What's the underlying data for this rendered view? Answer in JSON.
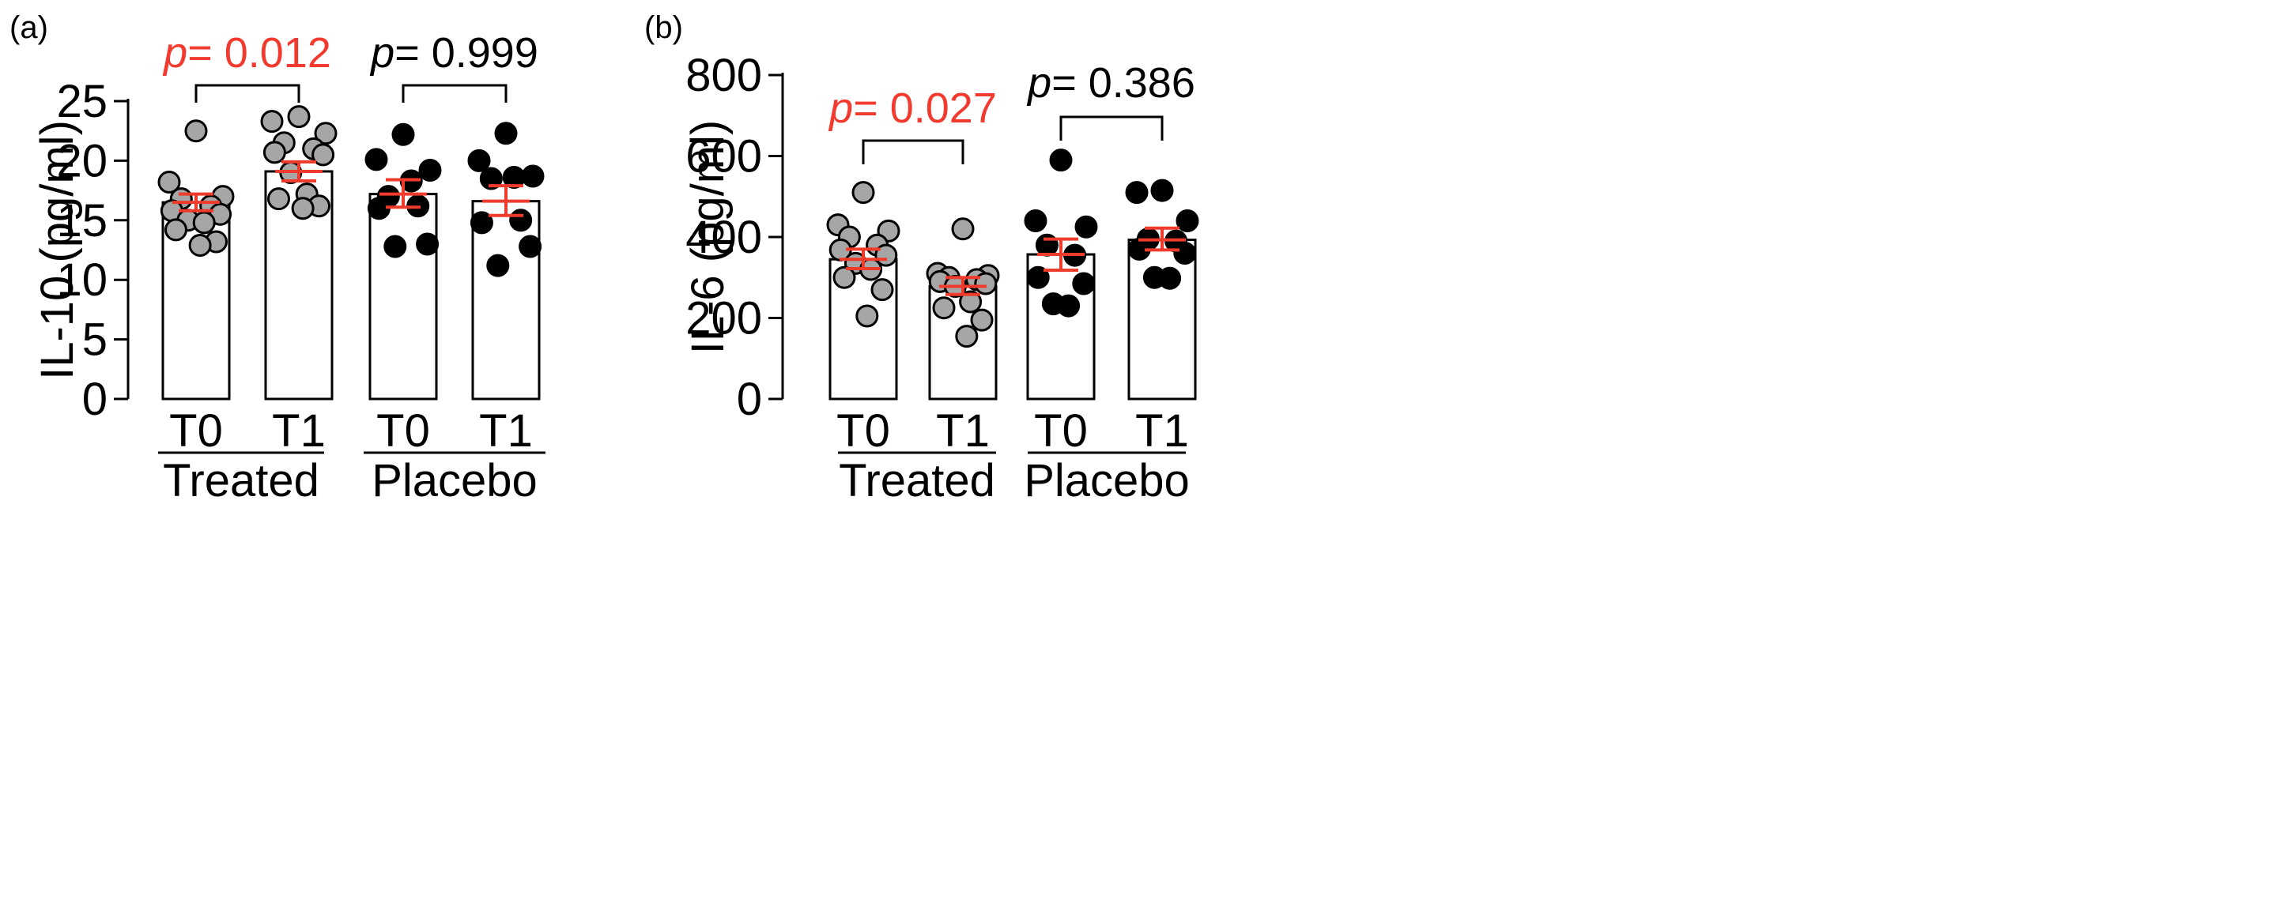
{
  "colors": {
    "sig": "#f23a2f",
    "ns": "#000000",
    "error_bar": "#ef3b2c",
    "treated_point": "#a6a6a6",
    "placebo_point": "#000000"
  },
  "chart_data": [
    {
      "type": "bar",
      "panel_label": "(a)",
      "ylabel": "IL-10 (pg/ml)",
      "ylim": [
        0,
        25
      ],
      "yticks": [
        "0",
        "5",
        "10",
        "15",
        "20",
        "25"
      ],
      "categories": [
        "T0",
        "T1",
        "T0",
        "T1"
      ],
      "groups": [
        {
          "name": "Treated",
          "categories": [
            0,
            1
          ]
        },
        {
          "name": "Placebo",
          "categories": [
            2,
            3
          ]
        }
      ],
      "bars": [
        {
          "group": "Treated",
          "label": "T0",
          "mean": 16.5,
          "sem_low": 15.8,
          "sem_high": 17.2,
          "points": [
            22.5,
            18.2,
            17.0,
            16.8,
            16.2,
            15.8,
            15.5,
            15.0,
            14.8,
            14.2,
            13.2,
            12.9
          ]
        },
        {
          "group": "Treated",
          "label": "T1",
          "mean": 19.1,
          "sem_low": 18.3,
          "sem_high": 19.9,
          "points": [
            23.7,
            23.3,
            22.3,
            21.5,
            21.0,
            20.7,
            20.5,
            19.0,
            17.2,
            16.8,
            16.2,
            16.0
          ]
        },
        {
          "group": "Placebo",
          "label": "T0",
          "mean": 17.2,
          "sem_low": 16.1,
          "sem_high": 18.4,
          "points": [
            22.2,
            20.1,
            19.2,
            17.0,
            16.2,
            16.0,
            13.0,
            12.8,
            18.3
          ]
        },
        {
          "group": "Placebo",
          "label": "T1",
          "mean": 16.6,
          "sem_low": 15.4,
          "sem_high": 17.9,
          "points": [
            22.3,
            20.0,
            18.7,
            18.5,
            15.0,
            14.8,
            12.8,
            11.2,
            18.6
          ]
        }
      ],
      "comparisons": [
        {
          "from": 0,
          "to": 1,
          "p_symbol": "p",
          "p_rest": "= 0.012",
          "significant": true
        },
        {
          "from": 2,
          "to": 3,
          "p_symbol": "p",
          "p_rest": "= 0.999",
          "significant": false
        }
      ]
    },
    {
      "type": "bar",
      "panel_label": "(b)",
      "ylabel": "IL-6 (pg/ml)",
      "ylim": [
        0,
        800
      ],
      "yticks": [
        "0",
        "200",
        "400",
        "600",
        "800"
      ],
      "categories": [
        "T0",
        "T1",
        "T0",
        "T1"
      ],
      "groups": [
        {
          "name": "Treated",
          "categories": [
            0,
            1
          ]
        },
        {
          "name": "Placebo",
          "categories": [
            2,
            3
          ]
        }
      ],
      "bars": [
        {
          "group": "Treated",
          "label": "T0",
          "mean": 345,
          "sem_low": 322,
          "sem_high": 370,
          "points": [
            510,
            430,
            415,
            400,
            380,
            368,
            355,
            335,
            320,
            300,
            270,
            205
          ]
        },
        {
          "group": "Treated",
          "label": "T1",
          "mean": 278,
          "sem_low": 258,
          "sem_high": 300,
          "points": [
            420,
            310,
            305,
            300,
            295,
            290,
            285,
            278,
            240,
            225,
            195,
            155
          ]
        },
        {
          "group": "Placebo",
          "label": "T0",
          "mean": 357,
          "sem_low": 318,
          "sem_high": 395,
          "points": [
            590,
            440,
            425,
            380,
            355,
            300,
            285,
            235,
            230
          ]
        },
        {
          "group": "Placebo",
          "label": "T1",
          "mean": 393,
          "sem_low": 368,
          "sem_high": 422,
          "points": [
            515,
            510,
            440,
            395,
            390,
            370,
            360,
            300,
            298
          ]
        }
      ],
      "comparisons": [
        {
          "from": 0,
          "to": 1,
          "p_symbol": "p",
          "p_rest": "= 0.027",
          "significant": true
        },
        {
          "from": 2,
          "to": 3,
          "p_symbol": "p",
          "p_rest": "= 0.386",
          "significant": false
        }
      ]
    }
  ]
}
